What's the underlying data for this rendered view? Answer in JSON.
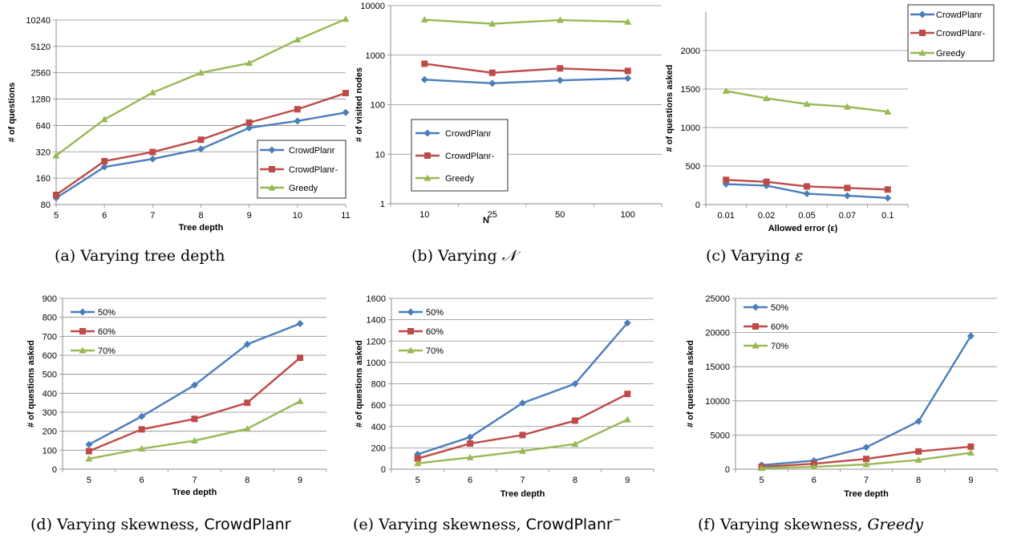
{
  "colors": {
    "blue": "#4a7ebb",
    "red": "#be4b48",
    "green": "#98b954",
    "grid": "#8c8c8c",
    "axis": "#8c8c8c"
  },
  "chart_data": [
    {
      "id": "a",
      "type": "line",
      "caption": "(a) Varying tree depth",
      "xlabel": "Tree depth",
      "ylabel": "# of questions",
      "yscale": "log2",
      "ylim": [
        80,
        10240
      ],
      "yticks": [
        "80",
        "160",
        "320",
        "640",
        "1280",
        "2560",
        "5120",
        "10240"
      ],
      "categories": [
        "5",
        "6",
        "7",
        "8",
        "9",
        "10",
        "11"
      ],
      "legend": "bottom-right",
      "series": [
        {
          "name": "CrowdPlanr",
          "marker": "diamond",
          "color": "#4a7ebb",
          "values": [
            95,
            215,
            265,
            345,
            600,
            720,
            900
          ]
        },
        {
          "name": "CrowdPlanr-",
          "marker": "square",
          "color": "#be4b48",
          "values": [
            103,
            250,
            318,
            440,
            690,
            980,
            1500
          ]
        },
        {
          "name": "Greedy",
          "marker": "triangle",
          "color": "#98b954",
          "values": [
            290,
            750,
            1520,
            2560,
            3300,
            6100,
            10500
          ]
        }
      ]
    },
    {
      "id": "b",
      "type": "line",
      "caption_prefix": "(b) Varying ",
      "caption_symbol": "𝒩",
      "xlabel": "N",
      "ylabel": "# of visited nodes",
      "yscale": "log10",
      "ylim": [
        1,
        10000
      ],
      "yticks": [
        "1",
        "10",
        "100",
        "1000",
        "10000"
      ],
      "categories": [
        "10",
        "25",
        "50",
        "100"
      ],
      "legend": "bottom-left",
      "series": [
        {
          "name": "CrowdPlanr",
          "marker": "diamond",
          "color": "#4a7ebb",
          "values": [
            320,
            270,
            310,
            340
          ]
        },
        {
          "name": "CrowdPlanr-",
          "marker": "square",
          "color": "#be4b48",
          "values": [
            670,
            440,
            540,
            480
          ]
        },
        {
          "name": "Greedy",
          "marker": "triangle",
          "color": "#98b954",
          "values": [
            5200,
            4300,
            5100,
            4700
          ]
        }
      ]
    },
    {
      "id": "c",
      "type": "line",
      "caption_prefix": "(c) Varying ",
      "caption_symbol": "ε",
      "xlabel": "Allowed error (ε)",
      "ylabel": "# of questions asked",
      "yscale": "linear",
      "ylim": [
        0,
        2500
      ],
      "yticks": [
        "0",
        "500",
        "1000",
        "1500",
        "2000"
      ],
      "categories": [
        "0.01",
        "0.02",
        "0.05",
        "0.07",
        "0.1"
      ],
      "legend": "top-right",
      "series": [
        {
          "name": "CrowdPlanr",
          "marker": "diamond",
          "color": "#4a7ebb",
          "values": [
            265,
            245,
            140,
            115,
            85
          ]
        },
        {
          "name": "CrowdPlanr-",
          "marker": "square",
          "color": "#be4b48",
          "values": [
            320,
            295,
            235,
            215,
            195
          ]
        },
        {
          "name": "Greedy",
          "marker": "triangle",
          "color": "#98b954",
          "values": [
            1475,
            1380,
            1305,
            1270,
            1205
          ]
        }
      ]
    },
    {
      "id": "d",
      "type": "line",
      "caption_prefix": "(d) Varying skewness, ",
      "caption_system": "CrowdPlanr",
      "xlabel": "Tree depth",
      "ylabel": "# of questions asked",
      "yscale": "linear",
      "ylim": [
        0,
        900
      ],
      "yticks": [
        "0",
        "100",
        "200",
        "300",
        "400",
        "500",
        "600",
        "700",
        "800",
        "900"
      ],
      "categories": [
        "5",
        "6",
        "7",
        "8",
        "9"
      ],
      "legend": "top-left",
      "series": [
        {
          "name": "50%",
          "marker": "diamond",
          "color": "#4a7ebb",
          "values": [
            130,
            278,
            443,
            658,
            767
          ]
        },
        {
          "name": "60%",
          "marker": "square",
          "color": "#be4b48",
          "values": [
            95,
            210,
            265,
            350,
            587
          ]
        },
        {
          "name": "70%",
          "marker": "triangle",
          "color": "#98b954",
          "values": [
            55,
            108,
            150,
            213,
            358
          ]
        }
      ]
    },
    {
      "id": "e",
      "type": "line",
      "caption_prefix": "(e) Varying skewness, ",
      "caption_system": "CrowdPlanr",
      "caption_sup": "−",
      "xlabel": "Tree depth",
      "ylabel": "# of questions asked",
      "yscale": "linear",
      "ylim": [
        0,
        1600
      ],
      "yticks": [
        "0",
        "200",
        "400",
        "600",
        "800",
        "1000",
        "1200",
        "1400",
        "1600"
      ],
      "categories": [
        "5",
        "6",
        "7",
        "8",
        "9"
      ],
      "legend": "top-left",
      "series": [
        {
          "name": "50%",
          "marker": "diamond",
          "color": "#4a7ebb",
          "values": [
            140,
            300,
            620,
            800,
            1370
          ]
        },
        {
          "name": "60%",
          "marker": "square",
          "color": "#be4b48",
          "values": [
            100,
            240,
            320,
            455,
            705
          ]
        },
        {
          "name": "70%",
          "marker": "triangle",
          "color": "#98b954",
          "values": [
            55,
            110,
            170,
            235,
            465
          ]
        }
      ]
    },
    {
      "id": "f",
      "type": "line",
      "caption_prefix": "(f) Varying skewness, ",
      "caption_italic": "Greedy",
      "xlabel": "Tree depth",
      "ylabel": "# of questions asked",
      "yscale": "linear",
      "ylim": [
        0,
        25000
      ],
      "yticks": [
        "0",
        "5000",
        "10000",
        "15000",
        "20000",
        "25000"
      ],
      "categories": [
        "5",
        "6",
        "7",
        "8",
        "9"
      ],
      "legend": "top-left",
      "series": [
        {
          "name": "50%",
          "marker": "diamond",
          "color": "#4a7ebb",
          "values": [
            600,
            1250,
            3200,
            7000,
            19500
          ]
        },
        {
          "name": "60%",
          "marker": "square",
          "color": "#be4b48",
          "values": [
            350,
            800,
            1500,
            2600,
            3300
          ]
        },
        {
          "name": "70%",
          "marker": "triangle",
          "color": "#98b954",
          "values": [
            150,
            350,
            700,
            1350,
            2400
          ]
        }
      ]
    }
  ]
}
